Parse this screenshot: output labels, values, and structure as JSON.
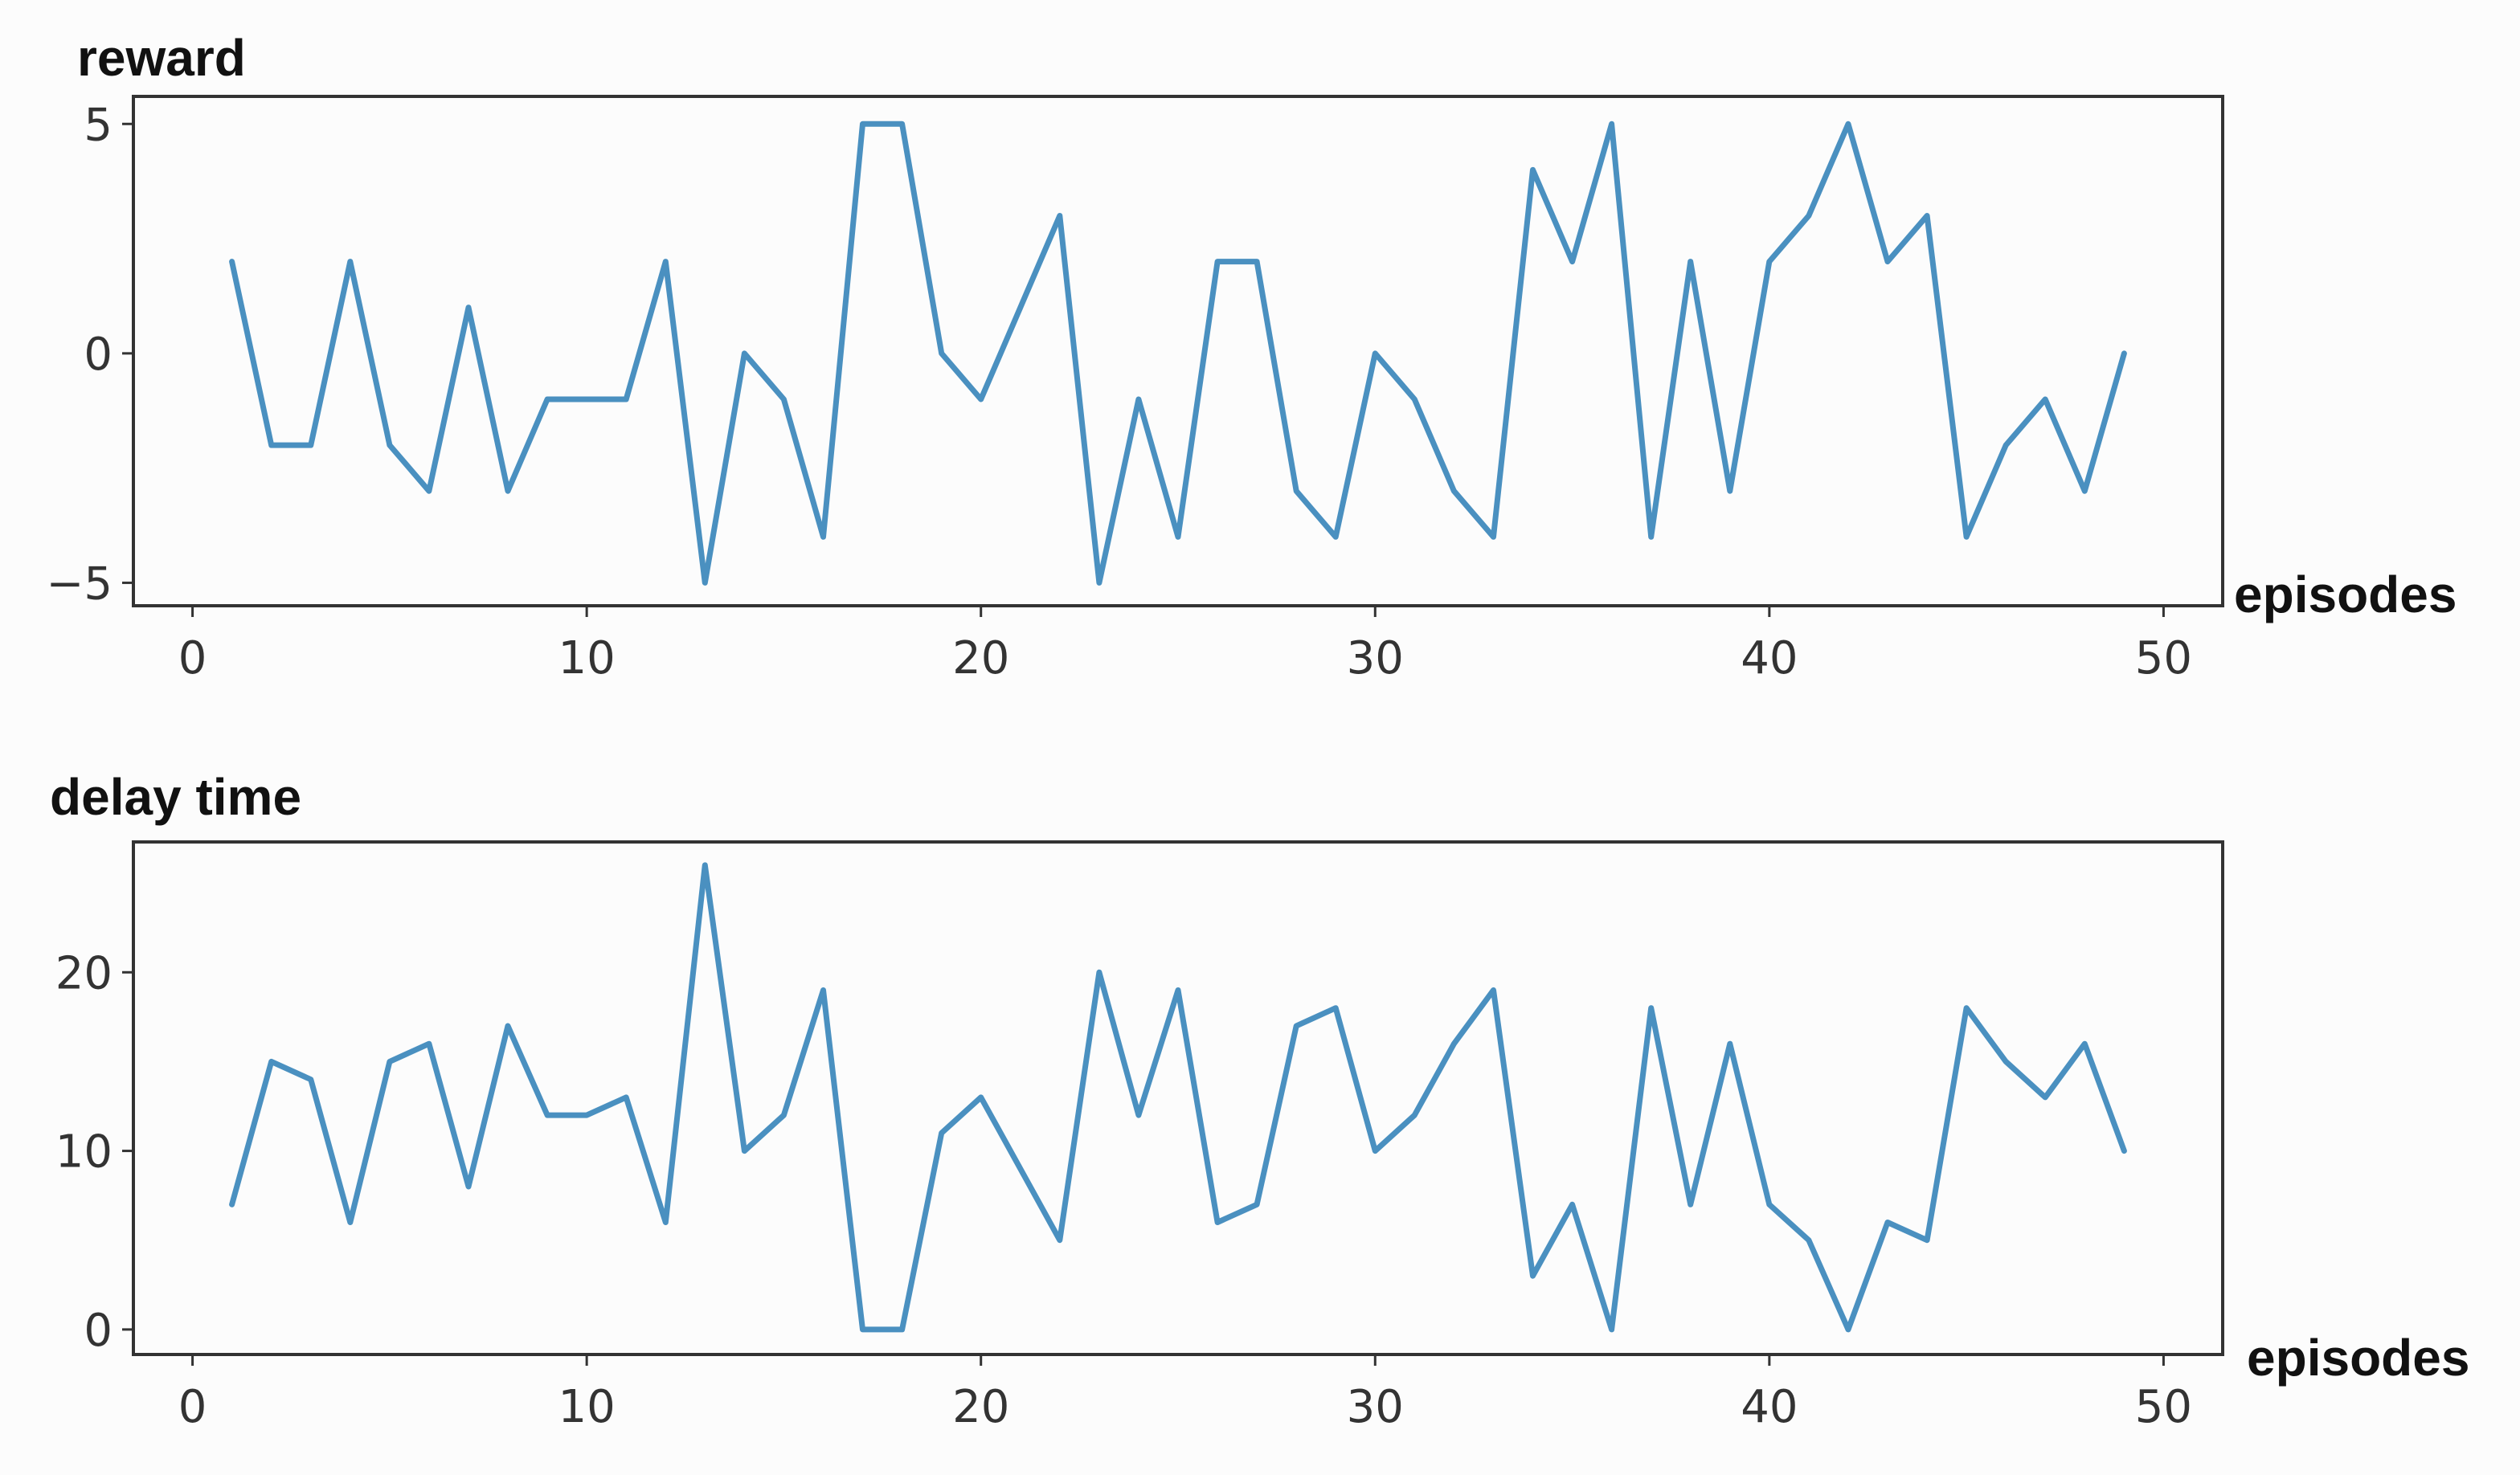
{
  "chart_data": [
    {
      "type": "line",
      "ylabel": "reward",
      "xlabel": "episodes",
      "xlim": [
        -1.5,
        51.5
      ],
      "ylim": [
        -5.5,
        5.6
      ],
      "xticks": [
        0,
        10,
        20,
        30,
        40,
        50
      ],
      "yticks": [
        -5,
        0,
        5
      ],
      "ytick_labels": [
        "−5",
        "0",
        "5"
      ],
      "xtick_labels": [
        "0",
        "10",
        "20",
        "30",
        "40",
        "50"
      ],
      "grid": false,
      "color": "#4a90c0",
      "x": [
        1,
        2,
        3,
        4,
        5,
        6,
        7,
        8,
        9,
        10,
        11,
        12,
        13,
        14,
        15,
        16,
        17,
        18,
        19,
        20,
        21,
        22,
        23,
        24,
        25,
        26,
        27,
        28,
        29,
        30,
        31,
        32,
        33,
        34,
        35,
        36,
        37,
        38,
        39,
        40,
        41,
        42,
        43,
        44,
        45,
        46,
        47,
        48,
        49
      ],
      "series": [
        {
          "values": [
            2,
            -2,
            -2,
            2,
            -2,
            -3,
            1,
            -3,
            -1,
            -1,
            -1,
            2,
            -5,
            0,
            -1,
            -4,
            5,
            5,
            0,
            -1,
            1,
            3,
            -5,
            -1,
            -4,
            2,
            2,
            -3,
            -4,
            0,
            -1,
            -3,
            -4,
            4,
            2,
            5,
            -4,
            2,
            -3,
            2,
            3,
            5,
            2,
            3,
            -4,
            -2,
            -1,
            -3,
            0
          ]
        }
      ]
    },
    {
      "type": "line",
      "ylabel": "delay time",
      "xlabel": "episodes",
      "xlim": [
        -1.5,
        51.5
      ],
      "ylim": [
        -1.4,
        27.3
      ],
      "xticks": [
        0,
        10,
        20,
        30,
        40,
        50
      ],
      "yticks": [
        0,
        10,
        20
      ],
      "ytick_labels": [
        "0",
        "10",
        "20"
      ],
      "xtick_labels": [
        "0",
        "10",
        "20",
        "30",
        "40",
        "50"
      ],
      "grid": false,
      "color": "#4a90c0",
      "x": [
        1,
        2,
        3,
        4,
        5,
        6,
        7,
        8,
        9,
        10,
        11,
        12,
        13,
        14,
        15,
        16,
        17,
        18,
        19,
        20,
        21,
        22,
        23,
        24,
        25,
        26,
        27,
        28,
        29,
        30,
        31,
        32,
        33,
        34,
        35,
        36,
        37,
        38,
        39,
        40,
        41,
        42,
        43,
        44,
        45,
        46,
        47,
        48,
        49
      ],
      "series": [
        {
          "values": [
            7,
            15,
            14,
            6,
            15,
            16,
            8,
            17,
            12,
            12,
            13,
            6,
            26,
            10,
            12,
            19,
            0,
            0,
            11,
            13,
            9,
            5,
            20,
            12,
            19,
            6,
            7,
            17,
            18,
            10,
            12,
            16,
            19,
            3,
            7,
            0,
            18,
            7,
            16,
            7,
            5,
            0,
            6,
            5,
            18,
            15,
            13,
            16,
            10
          ]
        }
      ]
    }
  ]
}
